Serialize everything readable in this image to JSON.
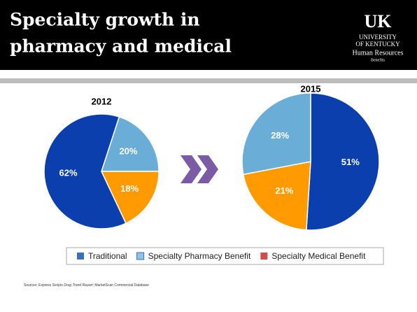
{
  "header": {
    "title_line1": "Specialty growth in",
    "title_line2": "pharmacy and medical"
  },
  "logo": {
    "mark": "UK",
    "line1": "UNIVERSITY",
    "line2": "OF KENTUCKY",
    "line3": "Human Resources",
    "line4": "Benefits"
  },
  "chart_data": [
    {
      "type": "pie",
      "title": "2012",
      "categories": [
        "Traditional",
        "Specialty Pharmacy Benefit",
        "Specialty Medical Benefit"
      ],
      "values": [
        62,
        20,
        18
      ],
      "value_labels": [
        "62%",
        "20%",
        "18%"
      ],
      "colors": [
        "#0b3fae",
        "#6aaed8",
        "#ff9a00"
      ]
    },
    {
      "type": "pie",
      "title": "2015",
      "categories": [
        "Traditional",
        "Specialty Pharmacy Benefit",
        "Specialty Medical Benefit"
      ],
      "values": [
        51,
        28,
        21
      ],
      "value_labels": [
        "51%",
        "28%",
        "21%"
      ],
      "colors": [
        "#0b3fae",
        "#6aaed8",
        "#ff9a00"
      ]
    }
  ],
  "legend": {
    "items": [
      {
        "name": "Traditional",
        "color": "#3b6fc4"
      },
      {
        "name": "Specialty Pharmacy Benefit",
        "color": "#8fc3e6"
      },
      {
        "name": "Specialty Medical Benefit",
        "color": "#cf4f4a"
      }
    ]
  },
  "source": {
    "prefix": "Sources: Express Scripts ",
    "italic": "Drug Trend Report",
    "suffix": "; MarketScan Commercial Database"
  }
}
